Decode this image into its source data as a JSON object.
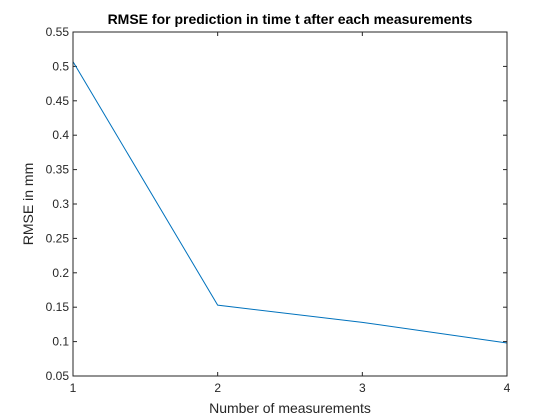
{
  "chart_data": {
    "type": "line",
    "title": "RMSE for prediction in time t after each measurements",
    "xlabel": "Number of measurements",
    "ylabel": "RMSE in mm",
    "xlim": [
      1,
      4
    ],
    "ylim": [
      0.05,
      0.55
    ],
    "xticks": [
      "1",
      "2",
      "3",
      "4"
    ],
    "yticks": [
      "0.05",
      "0.1",
      "0.15",
      "0.2",
      "0.25",
      "0.3",
      "0.35",
      "0.4",
      "0.45",
      "0.5",
      "0.55"
    ],
    "grid": false,
    "series": [
      {
        "x": [
          1,
          2,
          3,
          4
        ],
        "values": [
          0.507,
          0.153,
          0.128,
          0.098
        ],
        "color": "#0072bd"
      }
    ]
  }
}
